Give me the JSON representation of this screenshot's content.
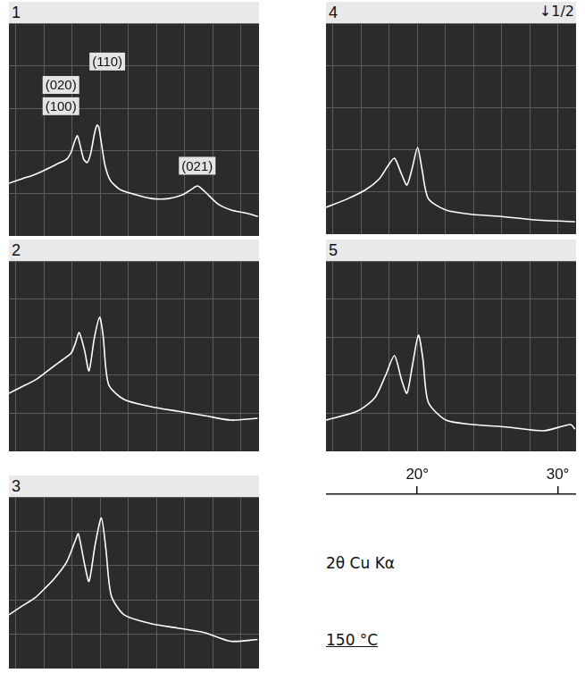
{
  "chart_data": [
    {
      "type": "line",
      "title": "1",
      "x": [
        13.5,
        14.45,
        15.4,
        16.35,
        16.98,
        17.61,
        17.93,
        18.18,
        18.37,
        18.56,
        18.82,
        19.07,
        19.32,
        19.58,
        19.77,
        19.89,
        20.08,
        20.34,
        20.72,
        21.41,
        22.36,
        23.63,
        24.89,
        25.84,
        26.47,
        26.92,
        27.42,
        28.37,
        29.32,
        30.27,
        31.22
      ],
      "values": [
        24.8,
        26.9,
        29.0,
        31.9,
        34.0,
        36.1,
        39.5,
        44.5,
        47.1,
        42.9,
        36.1,
        34.5,
        38.7,
        47.9,
        52.1,
        51.3,
        43.7,
        33.2,
        26.1,
        21.8,
        19.7,
        17.6,
        17.6,
        19.3,
        21.8,
        23.5,
        21.0,
        15.1,
        12.2,
        10.9,
        9.2
      ],
      "xlim": [
        13.5,
        31.3
      ],
      "ylim": [
        0,
        100
      ],
      "xticks": [
        14,
        16,
        18,
        20,
        22,
        24,
        26,
        28,
        30
      ],
      "yticks": [
        0,
        20,
        40,
        60,
        80,
        100
      ],
      "grid": true,
      "tick_labels": false,
      "color": "#ffffff",
      "annotations": [
        {
          "text": "(110)",
          "x": 20.5,
          "y": 82
        },
        {
          "text": "(020)",
          "x": 17.2,
          "y": 71
        },
        {
          "text": "(100)",
          "x": 17.2,
          "y": 61
        },
        {
          "text": "(021)",
          "x": 26.9,
          "y": 33
        }
      ]
    },
    {
      "type": "line",
      "title": "2",
      "x": [
        13.5,
        14.45,
        15.4,
        16.03,
        16.67,
        17.3,
        17.93,
        18.24,
        18.5,
        18.88,
        19.2,
        19.58,
        19.96,
        20.2,
        20.59,
        21.7,
        23.6,
        25.5,
        27.4,
        29.3,
        31.2
      ],
      "values": [
        30.5,
        34.0,
        37.6,
        41.0,
        44.6,
        48.0,
        51.6,
        57.0,
        62.4,
        53.1,
        42.3,
        59.6,
        70.4,
        61.0,
        35.2,
        27.2,
        23.5,
        21.1,
        18.8,
        16.4,
        17.4
      ],
      "xlim": [
        13.5,
        31.3
      ],
      "ylim": [
        0,
        100
      ],
      "xticks": [
        14,
        16,
        18,
        20,
        22,
        24,
        26,
        28,
        30
      ],
      "yticks": [
        0,
        20,
        40,
        60,
        80,
        100
      ],
      "grid": true,
      "tick_labels": false,
      "color": "#ffffff"
    },
    {
      "type": "line",
      "title": "3",
      "x": [
        13.5,
        14.45,
        15.4,
        16.03,
        16.67,
        17.61,
        18.24,
        18.44,
        18.88,
        19.2,
        19.64,
        20.08,
        20.4,
        20.78,
        21.7,
        23.6,
        25.5,
        27.4,
        29.3,
        31.2
      ],
      "values": [
        31.3,
        36.5,
        41.5,
        46.5,
        51.8,
        62.1,
        74.9,
        78.5,
        61.0,
        50.8,
        72.3,
        87.7,
        69.7,
        42.6,
        31.3,
        26.2,
        23.6,
        21.0,
        15.9,
        16.9
      ],
      "xlim": [
        13.5,
        31.3
      ],
      "ylim": [
        0,
        100
      ],
      "xticks": [
        14,
        16,
        18,
        20,
        22,
        24,
        26,
        28,
        30
      ],
      "yticks": [
        0,
        20,
        40,
        60,
        80,
        100
      ],
      "grid": true,
      "tick_labels": false,
      "color": "#ffffff"
    },
    {
      "type": "line",
      "title": "4",
      "subtitle": "↓1/2",
      "x": [
        13.5,
        15.08,
        16.35,
        17.3,
        17.93,
        18.37,
        18.88,
        19.26,
        19.64,
        20.02,
        20.34,
        20.78,
        22.04,
        23.94,
        25.84,
        28.37,
        31.22
      ],
      "values": [
        12.7,
        16.9,
        21.2,
        26.3,
        32.6,
        36.0,
        28.4,
        23.3,
        31.4,
        41.1,
        30.5,
        16.9,
        11.4,
        9.3,
        8.5,
        6.8,
        5.9
      ],
      "xlim": [
        13.5,
        31.3
      ],
      "ylim": [
        0,
        100
      ],
      "xticks": [
        14,
        16,
        18,
        20,
        22,
        24,
        26,
        28,
        30
      ],
      "yticks": [
        0,
        20,
        40,
        60,
        80,
        100
      ],
      "grid": true,
      "tick_labels": false,
      "color": "#ffffff"
    },
    {
      "type": "line",
      "title": "5",
      "x": [
        13.5,
        15.72,
        16.98,
        17.74,
        18.37,
        18.88,
        19.26,
        19.64,
        20.08,
        20.4,
        20.78,
        22.04,
        23.94,
        26.47,
        29.0,
        30.9,
        31.22
      ],
      "values": [
        16.4,
        21.1,
        28.2,
        39.9,
        50.2,
        37.6,
        30.5,
        44.6,
        61.0,
        48.4,
        25.8,
        16.4,
        14.1,
        12.7,
        10.8,
        14.1,
        11.7
      ],
      "xlim": [
        13.5,
        31.3
      ],
      "ylim": [
        0,
        100
      ],
      "xticks": [
        14,
        16,
        18,
        20,
        22,
        24,
        26,
        28,
        30
      ],
      "yticks": [
        0,
        20,
        40,
        60,
        80,
        100
      ],
      "grid": true,
      "tick_labels": false,
      "color": "#ffffff"
    },
    {
      "type": "axis",
      "xlim": [
        13.5,
        31.3
      ],
      "xticks": [
        {
          "value": 20,
          "label": "20°"
        },
        {
          "value": 30,
          "label": "30°"
        }
      ],
      "xlabel": "2θ Cu Kα",
      "tick_labels": "x",
      "color": "#111111"
    }
  ],
  "caption": "150 °C"
}
